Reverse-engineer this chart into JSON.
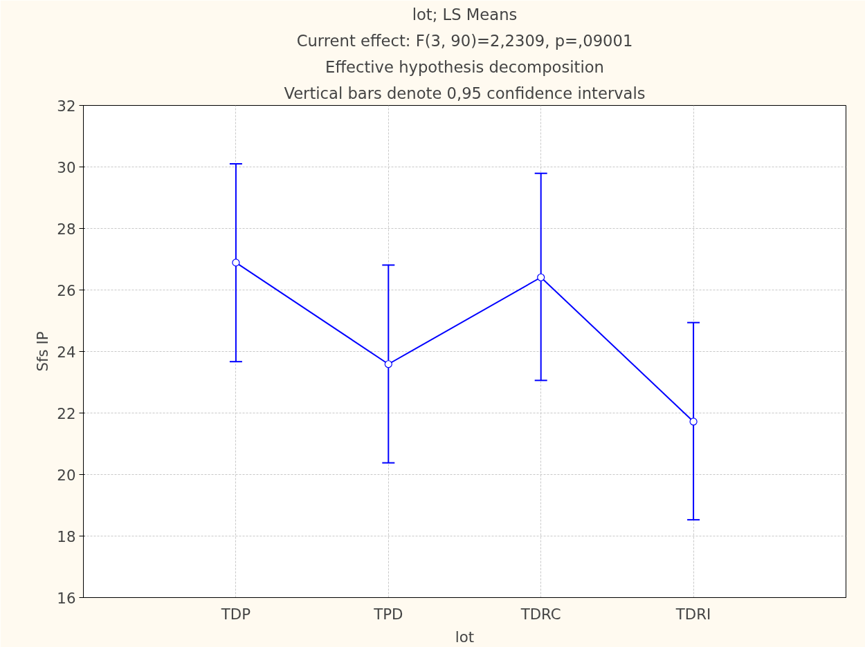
{
  "chart_data": {
    "type": "line",
    "title": "lot; LS Means",
    "subtitle": "Current effect: F(3, 90)=2,2309, p=,09001",
    "annotations": [
      "Effective hypothesis decomposition",
      "Vertical bars denote 0,95 confidence intervals"
    ],
    "xlabel": "lot",
    "ylabel": "Sfs IP",
    "categories": [
      "TDP",
      "TPD",
      "TDRC",
      "TDRI"
    ],
    "series": [
      {
        "color": "#0000ff",
        "values": [
          26.89,
          23.59,
          26.41,
          21.72
        ],
        "errors": [
          [
            23.67,
            30.1
          ],
          [
            20.38,
            26.81
          ],
          [
            23.06,
            29.79
          ],
          [
            18.53,
            24.94
          ]
        ]
      }
    ],
    "ylim": [
      16,
      32
    ],
    "yticks": [
      16,
      18,
      20,
      22,
      24,
      26,
      28,
      30,
      32
    ],
    "grid": true,
    "marker": "circle",
    "line_style": "solid"
  }
}
